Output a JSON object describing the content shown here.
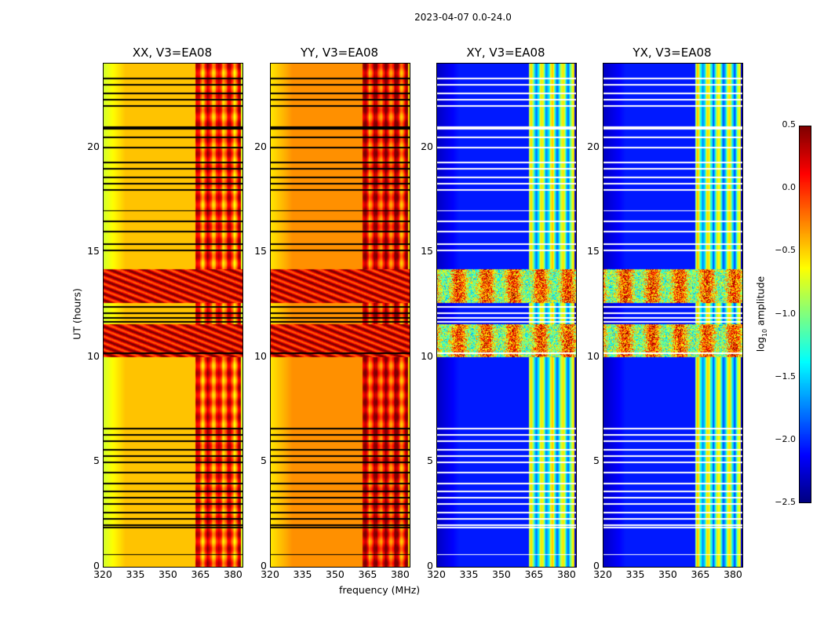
{
  "chart_data": {
    "type": "heatmap",
    "title": "2023-04-07 0.0-24.0",
    "xlabel": "frequency (MHz)",
    "ylabel": "UT (hours)",
    "xlim": [
      320,
      384
    ],
    "ylim": [
      0,
      24
    ],
    "xticks": [
      "320",
      "335",
      "350",
      "365",
      "380"
    ],
    "xtick_values": [
      320,
      335,
      350,
      365,
      380
    ],
    "yticks": [
      "0",
      "5",
      "10",
      "15",
      "20"
    ],
    "ytick_values": [
      0,
      5,
      10,
      15,
      20
    ],
    "colormap": "jet",
    "colorbar": {
      "label": "log₁₀ amplitude",
      "label_main": "log",
      "label_sub": "10",
      "label_rest": " amplitude",
      "range": [
        -2.5,
        0.5
      ],
      "ticks": [
        "0.5",
        "0.0",
        "−0.5",
        "−1.0",
        "−1.5",
        "−2.0",
        "−2.5"
      ],
      "tick_values": [
        0.5,
        0.0,
        -0.5,
        -1.0,
        -1.5,
        -2.0,
        -2.5
      ]
    },
    "panels": [
      {
        "title": "XX, V3=EA08",
        "kind": "parallel",
        "base_edge": -0.75,
        "base_mid": -0.45,
        "band_level": 0.05,
        "flag_color": "#000000"
      },
      {
        "title": "YY, V3=EA08",
        "kind": "parallel",
        "base_edge": -0.55,
        "base_mid": -0.3,
        "band_level": 0.2,
        "flag_color": "#000000"
      },
      {
        "title": "XY, V3=EA08",
        "kind": "cross",
        "base_edge": -2.3,
        "base_mid": -2.05,
        "band_level": -1.0,
        "flag_color": "#ffffff"
      },
      {
        "title": "YX, V3=EA08",
        "kind": "cross",
        "base_edge": -2.3,
        "base_mid": -2.05,
        "band_level": -1.0,
        "flag_color": "#ffffff"
      }
    ],
    "rfi_band_mhz": [
      362,
      383
    ],
    "rfi_time_hours": [
      [
        10.0,
        11.6
      ],
      [
        12.6,
        14.2
      ]
    ],
    "flagged_rows_hours": [
      0.6,
      1.9,
      2.0,
      2.3,
      2.6,
      3.0,
      3.3,
      3.6,
      4.0,
      4.5,
      5.0,
      5.3,
      5.6,
      6.0,
      6.3,
      6.6,
      10.2,
      11.7,
      11.9,
      12.1,
      12.4,
      15.1,
      15.4,
      16.0,
      16.5,
      17.0,
      18.0,
      18.3,
      18.6,
      19.0,
      19.3,
      20.0,
      20.5,
      20.9,
      21.0,
      22.0,
      22.3,
      22.6,
      23.0,
      23.3
    ]
  }
}
